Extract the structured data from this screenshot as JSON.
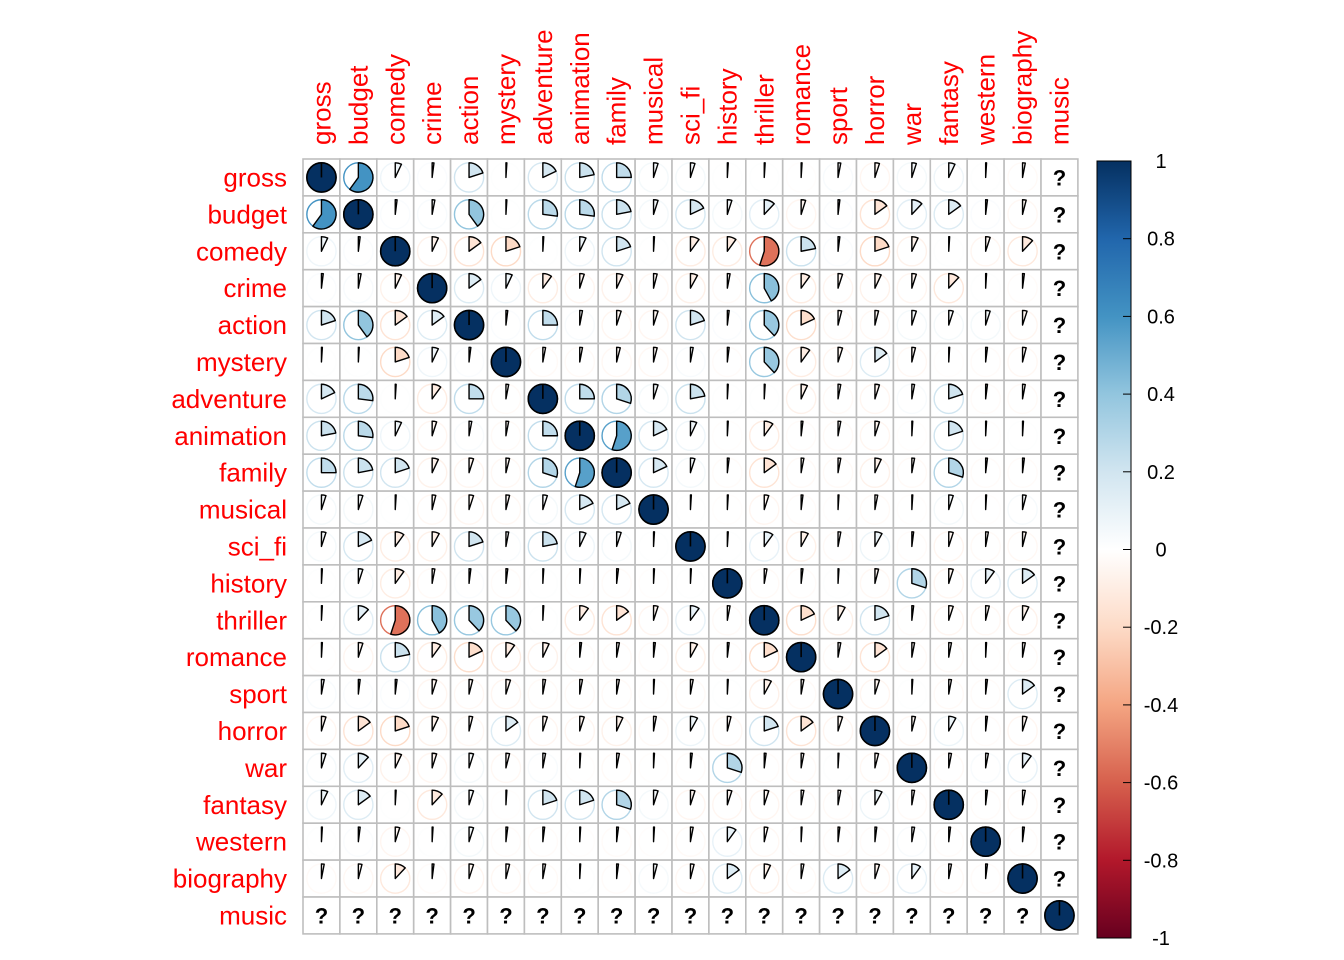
{
  "chart_data": {
    "type": "heatmap",
    "method": "pie",
    "labels": [
      "gross",
      "budget",
      "comedy",
      "crime",
      "action",
      "mystery",
      "adventure",
      "animation",
      "family",
      "musical",
      "sci_fi",
      "history",
      "thriller",
      "romance",
      "sport",
      "horror",
      "war",
      "fantasy",
      "western",
      "biography",
      "music"
    ],
    "missing_text": "?",
    "matrix": [
      [
        1,
        0.6,
        0.07,
        0.02,
        0.2,
        0.01,
        0.18,
        0.22,
        0.25,
        0.05,
        0.05,
        0.01,
        0.01,
        -0.01,
        0.03,
        -0.05,
        0.05,
        0.07,
        0.01,
        -0.03,
        null
      ],
      [
        0.6,
        1,
        0.02,
        0.03,
        0.4,
        0.01,
        0.27,
        0.27,
        0.22,
        0.05,
        0.18,
        0.05,
        0.12,
        -0.05,
        0.02,
        -0.15,
        0.12,
        0.15,
        0.02,
        -0.04,
        null
      ],
      [
        0.07,
        0.02,
        1,
        -0.07,
        -0.15,
        -0.2,
        0.01,
        0.07,
        0.2,
        0.01,
        -0.1,
        -0.1,
        -0.55,
        0.22,
        0.02,
        -0.2,
        -0.07,
        0.01,
        -0.05,
        -0.12,
        null
      ],
      [
        0.02,
        0.03,
        -0.07,
        1,
        0.15,
        0.07,
        -0.1,
        -0.05,
        -0.07,
        -0.04,
        -0.08,
        -0.03,
        0.42,
        -0.1,
        -0.05,
        -0.07,
        -0.05,
        -0.12,
        0.01,
        -0.02,
        null
      ],
      [
        0.2,
        0.4,
        -0.15,
        0.15,
        1,
        0.02,
        0.25,
        0.03,
        -0.05,
        -0.05,
        0.2,
        0.02,
        0.38,
        -0.18,
        -0.04,
        -0.04,
        0.05,
        0.05,
        0.05,
        -0.05,
        null
      ],
      [
        0.01,
        0.01,
        -0.2,
        0.07,
        0.02,
        1,
        -0.03,
        -0.03,
        -0.04,
        -0.04,
        0.03,
        -0.02,
        0.38,
        -0.1,
        -0.05,
        0.15,
        -0.04,
        -0.01,
        -0.02,
        -0.04,
        null
      ],
      [
        0.18,
        0.27,
        0.01,
        -0.1,
        0.25,
        -0.03,
        1,
        0.25,
        0.3,
        0.05,
        0.22,
        0.01,
        0.01,
        -0.07,
        -0.03,
        -0.05,
        0.03,
        0.2,
        -0.02,
        -0.03,
        null
      ],
      [
        0.22,
        0.27,
        0.07,
        -0.05,
        0.03,
        -0.03,
        0.25,
        1,
        0.55,
        0.18,
        0.07,
        -0.01,
        -0.1,
        -0.02,
        -0.03,
        -0.05,
        -0.01,
        0.2,
        -0.01,
        0.01,
        null
      ],
      [
        0.25,
        0.22,
        0.2,
        -0.07,
        -0.05,
        -0.04,
        0.3,
        0.55,
        1,
        0.18,
        0.05,
        -0.02,
        -0.15,
        -0.03,
        -0.03,
        -0.07,
        -0.03,
        0.3,
        -0.02,
        -0.02,
        null
      ],
      [
        0.05,
        0.05,
        0.01,
        -0.04,
        -0.05,
        -0.04,
        0.05,
        0.18,
        0.18,
        1,
        0.01,
        -0.01,
        -0.05,
        -0.02,
        -0.01,
        -0.03,
        -0.01,
        0.05,
        -0.01,
        0.04,
        null
      ],
      [
        0.05,
        0.18,
        -0.1,
        -0.08,
        0.2,
        0.03,
        0.22,
        0.07,
        0.05,
        0.01,
        1,
        0.01,
        0.1,
        -0.08,
        -0.03,
        0.08,
        -0.02,
        -0.05,
        -0.03,
        -0.04,
        null
      ],
      [
        0.01,
        0.05,
        -0.1,
        -0.03,
        0.02,
        -0.02,
        0.01,
        -0.01,
        -0.02,
        -0.01,
        0.01,
        1,
        -0.03,
        -0.02,
        0.01,
        -0.04,
        0.3,
        -0.05,
        0.1,
        0.15,
        null
      ],
      [
        0.01,
        0.12,
        -0.55,
        0.42,
        0.38,
        0.38,
        0.01,
        -0.1,
        -0.15,
        -0.05,
        0.1,
        -0.03,
        1,
        -0.18,
        -0.08,
        0.2,
        -0.02,
        -0.05,
        -0.04,
        -0.07,
        null
      ],
      [
        -0.01,
        -0.05,
        0.22,
        -0.1,
        -0.18,
        -0.1,
        -0.07,
        -0.02,
        -0.03,
        -0.02,
        -0.08,
        -0.02,
        -0.18,
        1,
        -0.03,
        -0.15,
        -0.03,
        -0.03,
        -0.01,
        -0.03,
        null
      ],
      [
        0.03,
        0.02,
        0.02,
        -0.05,
        -0.04,
        -0.05,
        -0.03,
        -0.03,
        -0.03,
        -0.01,
        -0.03,
        0.01,
        -0.08,
        -0.03,
        1,
        -0.05,
        0.01,
        -0.03,
        -0.02,
        0.15,
        null
      ],
      [
        -0.05,
        -0.15,
        -0.2,
        -0.07,
        -0.04,
        0.15,
        -0.05,
        -0.05,
        -0.07,
        -0.03,
        0.08,
        -0.04,
        0.2,
        -0.15,
        -0.05,
        1,
        -0.04,
        0.08,
        -0.02,
        -0.05,
        null
      ],
      [
        0.05,
        0.12,
        -0.07,
        -0.05,
        0.05,
        -0.04,
        0.03,
        -0.01,
        -0.03,
        -0.01,
        -0.02,
        0.3,
        -0.02,
        -0.03,
        0.01,
        -0.04,
        1,
        -0.03,
        0.03,
        0.1,
        null
      ],
      [
        0.07,
        0.15,
        0.01,
        -0.12,
        0.05,
        -0.01,
        0.2,
        0.2,
        0.3,
        0.05,
        -0.05,
        -0.05,
        -0.05,
        -0.03,
        -0.03,
        0.08,
        -0.03,
        1,
        -0.02,
        -0.03,
        null
      ],
      [
        0.01,
        0.02,
        -0.05,
        0.01,
        0.05,
        -0.02,
        -0.02,
        -0.01,
        -0.02,
        -0.01,
        -0.03,
        0.1,
        -0.04,
        -0.01,
        -0.02,
        -0.02,
        0.03,
        -0.02,
        1,
        -0.02,
        null
      ],
      [
        -0.03,
        -0.04,
        -0.12,
        -0.02,
        -0.05,
        -0.04,
        -0.03,
        0.01,
        -0.02,
        0.04,
        -0.04,
        0.15,
        -0.07,
        -0.03,
        0.15,
        -0.05,
        0.1,
        -0.03,
        -0.02,
        1,
        null
      ],
      [
        null,
        null,
        null,
        null,
        null,
        null,
        null,
        null,
        null,
        null,
        null,
        null,
        null,
        null,
        null,
        null,
        null,
        null,
        null,
        null,
        1
      ]
    ],
    "colorbar": {
      "min": -1,
      "max": 1,
      "tick_labels": [
        "1",
        "0.8",
        "0.6",
        "0.4",
        "0.2",
        "0",
        "-0.2",
        "-0.4",
        "-0.6",
        "-0.8",
        "-1"
      ],
      "stops": [
        "#67001F",
        "#B2182B",
        "#D6604D",
        "#F4A582",
        "#FDDBC7",
        "#FFFFFF",
        "#D1E5F0",
        "#92C5DE",
        "#4393C3",
        "#2166AC",
        "#053061"
      ]
    },
    "label_color": "#FF0000",
    "grid_color": "#BEBEBE"
  }
}
